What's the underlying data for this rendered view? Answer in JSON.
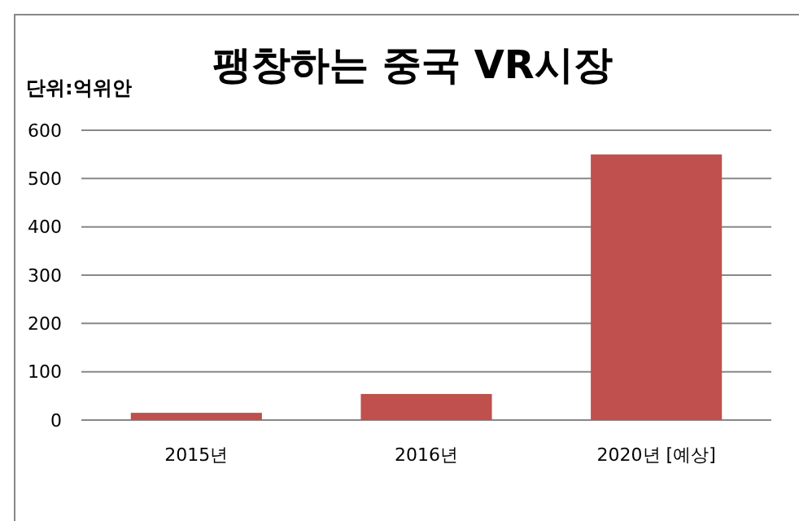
{
  "chart_data": {
    "type": "bar",
    "title": "팽창하는 중국 VR시장",
    "ylabel": "단위:억위안",
    "categories": [
      "2015년",
      "2016년",
      "2020년 [예상]"
    ],
    "values": [
      15,
      54,
      550
    ],
    "color": "#c0504d",
    "ylim": [
      0,
      600
    ],
    "yticks": [
      0,
      100,
      200,
      300,
      400,
      500,
      600
    ],
    "grid": "y"
  }
}
